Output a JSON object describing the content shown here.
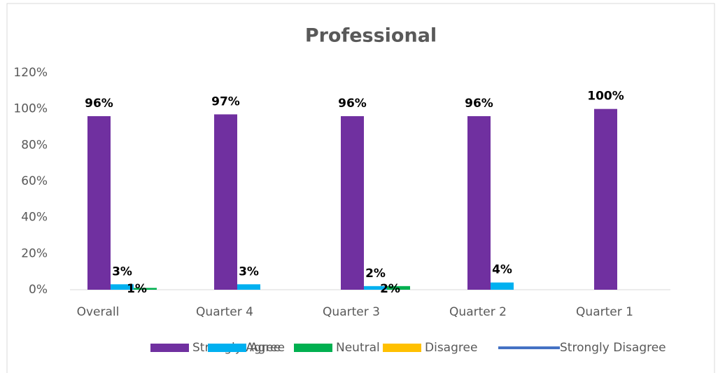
{
  "chart_data": {
    "type": "bar",
    "title": "Professional",
    "categories": [
      "Overall",
      "Quarter 4",
      "Quarter 3",
      "Quarter 2",
      "Quarter 1"
    ],
    "series": [
      {
        "name": "Strongly Agree",
        "color": "#7030a0",
        "values": [
          96,
          97,
          96,
          96,
          100
        ],
        "value_labels": [
          "96%",
          "97%",
          "96%",
          "96%",
          "100%"
        ]
      },
      {
        "name": "Agree",
        "color": "#00b0f0",
        "values": [
          3,
          3,
          2,
          4,
          null
        ],
        "value_labels": [
          "3%",
          "3%",
          "2%",
          "4%",
          null
        ]
      },
      {
        "name": "Neutral",
        "color": "#00b050",
        "values": [
          1,
          null,
          2,
          null,
          null
        ],
        "value_labels": [
          "1%",
          null,
          "2%",
          null,
          null
        ]
      },
      {
        "name": "Disagree",
        "color": "#ffc000",
        "values": [
          null,
          null,
          null,
          null,
          null
        ]
      },
      {
        "name": "Strongly Disagree",
        "color": "#4472c4",
        "values": [
          null,
          null,
          null,
          null,
          null
        ],
        "legend_style": "line"
      }
    ],
    "ylim": [
      0,
      120
    ],
    "yticks": [
      {
        "value": 0,
        "label": "0%"
      },
      {
        "value": 20,
        "label": "20%"
      },
      {
        "value": 40,
        "label": "40%"
      },
      {
        "value": 60,
        "label": "60%"
      },
      {
        "value": 80,
        "label": "80%"
      },
      {
        "value": 100,
        "label": "100%"
      },
      {
        "value": 120,
        "label": "120%"
      }
    ],
    "grid": false
  }
}
